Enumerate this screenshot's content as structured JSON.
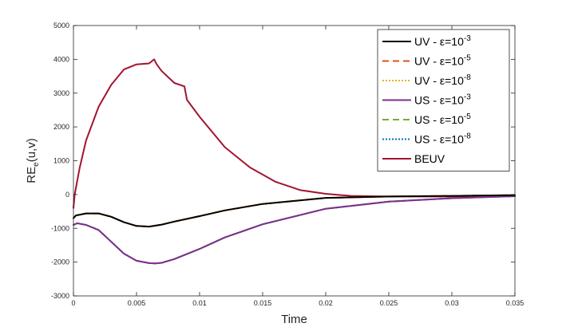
{
  "chart_data": {
    "type": "line",
    "title": "",
    "xlabel": "Time",
    "ylabel_main": "RE",
    "ylabel_sub": "e",
    "ylabel_tail": "(u,v)",
    "xlim": [
      0,
      0.035
    ],
    "ylim": [
      -3000,
      5000
    ],
    "xticks": [
      0,
      0.005,
      0.01,
      0.015,
      0.02,
      0.025,
      0.03,
      0.035
    ],
    "xtick_labels": [
      "0",
      "0.005",
      "0.01",
      "0.015",
      "0.02",
      "0.025",
      "0.03",
      "0.035"
    ],
    "yticks": [
      -3000,
      -2000,
      -1000,
      0,
      1000,
      2000,
      3000,
      4000,
      5000
    ],
    "ytick_labels": [
      "-3000",
      "-2000",
      "-1000",
      "0",
      "1000",
      "2000",
      "3000",
      "4000",
      "5000"
    ],
    "grid": false,
    "legend_position": "top-right",
    "series": [
      {
        "name": "UV - ε=10",
        "exponent": "-3",
        "color": "#000000",
        "dash": "solid",
        "x": [
          0,
          0.0002,
          0.001,
          0.002,
          0.003,
          0.004,
          0.005,
          0.006,
          0.007,
          0.008,
          0.01,
          0.012,
          0.015,
          0.02,
          0.025,
          0.03,
          0.035
        ],
        "y": [
          -700,
          -620,
          -560,
          -560,
          -660,
          -820,
          -930,
          -950,
          -890,
          -800,
          -640,
          -470,
          -280,
          -100,
          -60,
          -40,
          -20
        ]
      },
      {
        "name": "UV - ε=10",
        "exponent": "-5",
        "color": "#D95319",
        "dash": "dashed",
        "x": [
          0,
          0.0002,
          0.001,
          0.002,
          0.003,
          0.004,
          0.005,
          0.006,
          0.007,
          0.008,
          0.01,
          0.012,
          0.015,
          0.02,
          0.025,
          0.03,
          0.035
        ],
        "y": [
          -700,
          -620,
          -560,
          -560,
          -660,
          -820,
          -930,
          -950,
          -890,
          -800,
          -640,
          -470,
          -280,
          -100,
          -60,
          -40,
          -20
        ]
      },
      {
        "name": "UV - ε=10",
        "exponent": "-8",
        "color": "#EDB120",
        "dash": "dotted",
        "x": [
          0,
          0.0002,
          0.001,
          0.002,
          0.003,
          0.004,
          0.005,
          0.006,
          0.007,
          0.008,
          0.01,
          0.012,
          0.015,
          0.02,
          0.025,
          0.03,
          0.035
        ],
        "y": [
          -700,
          -620,
          -560,
          -560,
          -660,
          -820,
          -930,
          -950,
          -890,
          -800,
          -640,
          -470,
          -280,
          -100,
          -60,
          -40,
          -20
        ]
      },
      {
        "name": "US - ε=10",
        "exponent": "-3",
        "color": "#7E2F8E",
        "dash": "solid",
        "x": [
          0,
          0.0003,
          0.001,
          0.002,
          0.003,
          0.004,
          0.005,
          0.006,
          0.0065,
          0.007,
          0.008,
          0.01,
          0.012,
          0.015,
          0.02,
          0.025,
          0.03,
          0.035
        ],
        "y": [
          -900,
          -850,
          -900,
          -1050,
          -1400,
          -1750,
          -1960,
          -2030,
          -2040,
          -2020,
          -1910,
          -1610,
          -1270,
          -880,
          -420,
          -210,
          -110,
          -50
        ]
      },
      {
        "name": "US - ε=10",
        "exponent": "-5",
        "color": "#77AC30",
        "dash": "dashed",
        "x": [
          0,
          0.0003,
          0.001,
          0.002,
          0.003,
          0.004,
          0.005,
          0.006,
          0.0065,
          0.007,
          0.008,
          0.01,
          0.012,
          0.015,
          0.02,
          0.025,
          0.03,
          0.035
        ],
        "y": [
          -900,
          -850,
          -900,
          -1050,
          -1400,
          -1750,
          -1960,
          -2030,
          -2040,
          -2020,
          -1910,
          -1610,
          -1270,
          -880,
          -420,
          -210,
          -110,
          -50
        ]
      },
      {
        "name": "US - ε=10",
        "exponent": "-8",
        "color": "#0072BD",
        "dash": "dotted",
        "x": [
          0,
          0.0003,
          0.001,
          0.002,
          0.003,
          0.004,
          0.005,
          0.006,
          0.0065,
          0.007,
          0.008,
          0.01,
          0.012,
          0.015,
          0.02,
          0.025,
          0.03,
          0.035
        ],
        "y": [
          -900,
          -850,
          -900,
          -1050,
          -1400,
          -1750,
          -1960,
          -2030,
          -2040,
          -2020,
          -1910,
          -1610,
          -1270,
          -880,
          -420,
          -210,
          -110,
          -50
        ]
      },
      {
        "name": "BEUV",
        "exponent": "",
        "color": "#A2142F",
        "dash": "solid",
        "x": [
          0,
          0.0001,
          0.0003,
          0.0005,
          0.001,
          0.002,
          0.003,
          0.004,
          0.005,
          0.006,
          0.0064,
          0.0066,
          0.007,
          0.008,
          0.0088,
          0.009,
          0.01,
          0.012,
          0.014,
          0.016,
          0.018,
          0.02,
          0.022,
          0.025,
          0.03,
          0.035
        ],
        "y": [
          -400,
          0,
          400,
          800,
          1600,
          2600,
          3250,
          3700,
          3850,
          3880,
          4000,
          3850,
          3650,
          3300,
          3200,
          2800,
          2300,
          1400,
          800,
          380,
          130,
          20,
          -40,
          -60,
          -60,
          -40
        ]
      }
    ]
  }
}
